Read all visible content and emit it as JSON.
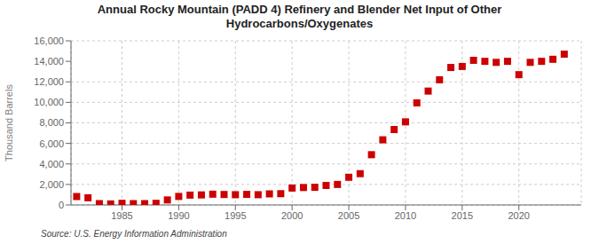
{
  "chart_data": {
    "type": "scatter",
    "title": "Annual Rocky Mountain (PADD 4) Refinery and Blender Net Input of Other\nHydrocarbons/Oxygenates",
    "y_label": "Thousand Barrels",
    "annotations": [
      "Source: U.S. Energy Information Administration"
    ],
    "x": [
      1981,
      1982,
      1983,
      1984,
      1985,
      1986,
      1987,
      1988,
      1989,
      1990,
      1991,
      1992,
      1993,
      1994,
      1995,
      1996,
      1997,
      1998,
      1999,
      2000,
      2001,
      2002,
      2003,
      2004,
      2005,
      2006,
      2007,
      2008,
      2009,
      2010,
      2011,
      2012,
      2013,
      2014,
      2015,
      2016,
      2017,
      2018,
      2019,
      2020,
      2021,
      2022,
      2023,
      2024
    ],
    "values": [
      820,
      700,
      130,
      100,
      160,
      130,
      130,
      160,
      490,
      830,
      960,
      980,
      1050,
      1020,
      1000,
      1030,
      1000,
      1080,
      1100,
      1650,
      1700,
      1720,
      1900,
      2000,
      2700,
      3050,
      4900,
      6350,
      7350,
      8100,
      9950,
      11100,
      12200,
      13400,
      13500,
      14100,
      14000,
      13900,
      14000,
      12700,
      13900,
      14000,
      14200,
      14700
    ],
    "color": "#cc0000",
    "marker": "square",
    "xlim": [
      1980.5,
      2025.5
    ],
    "xticks": [
      1985,
      1990,
      1995,
      2000,
      2005,
      2010,
      2015,
      2020
    ],
    "ylim": [
      0,
      16000
    ],
    "yticks": [
      0,
      {
        "value": 2000,
        "label": "2,000"
      },
      {
        "value": 4000,
        "label": "4,000"
      },
      {
        "value": 6000,
        "label": "6,000"
      },
      {
        "value": 8000,
        "label": "8,000"
      },
      {
        "value": 10000,
        "label": "10,000"
      },
      {
        "value": 12000,
        "label": "12,000"
      },
      {
        "value": 14000,
        "label": "14,000"
      },
      {
        "value": 16000,
        "label": "16,000"
      }
    ],
    "grid": true
  }
}
